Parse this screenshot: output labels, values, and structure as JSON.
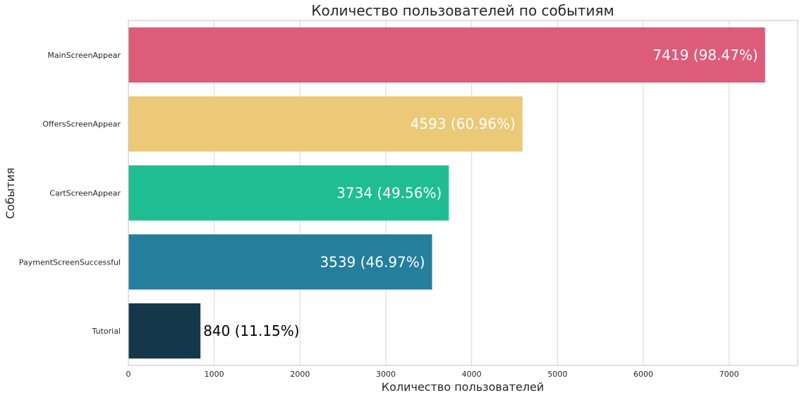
{
  "chart_data": {
    "type": "bar",
    "orientation": "horizontal",
    "title": "Количество пользователей по событиям",
    "xlabel": "Количество пользователей",
    "ylabel": "События",
    "categories": [
      "MainScreenAppear",
      "OffersScreenAppear",
      "CartScreenAppear",
      "PaymentScreenSuccessful",
      "Tutorial"
    ],
    "values": [
      7419,
      4593,
      3734,
      3539,
      840
    ],
    "data_labels": [
      "7419 (98.47%)",
      "4593 (60.96%)",
      "3734 (49.56%)",
      "3539 (46.97%)",
      "840 (11.15%)"
    ],
    "colors": [
      "#dd5c7a",
      "#ebc977",
      "#20bd93",
      "#247f9d",
      "#14374a"
    ],
    "label_colors": [
      "#ffffff",
      "#ffffff",
      "#ffffff",
      "#ffffff",
      "#000000"
    ],
    "label_positions": [
      "inside",
      "inside",
      "inside",
      "inside",
      "outside"
    ],
    "xlim": [
      0,
      7800
    ],
    "xticks": [
      0,
      1000,
      2000,
      3000,
      4000,
      5000,
      6000,
      7000
    ],
    "xtick_labels": [
      "0",
      "1000",
      "2000",
      "3000",
      "4000",
      "5000",
      "6000",
      "7000"
    ],
    "grid": true,
    "legend": false
  }
}
